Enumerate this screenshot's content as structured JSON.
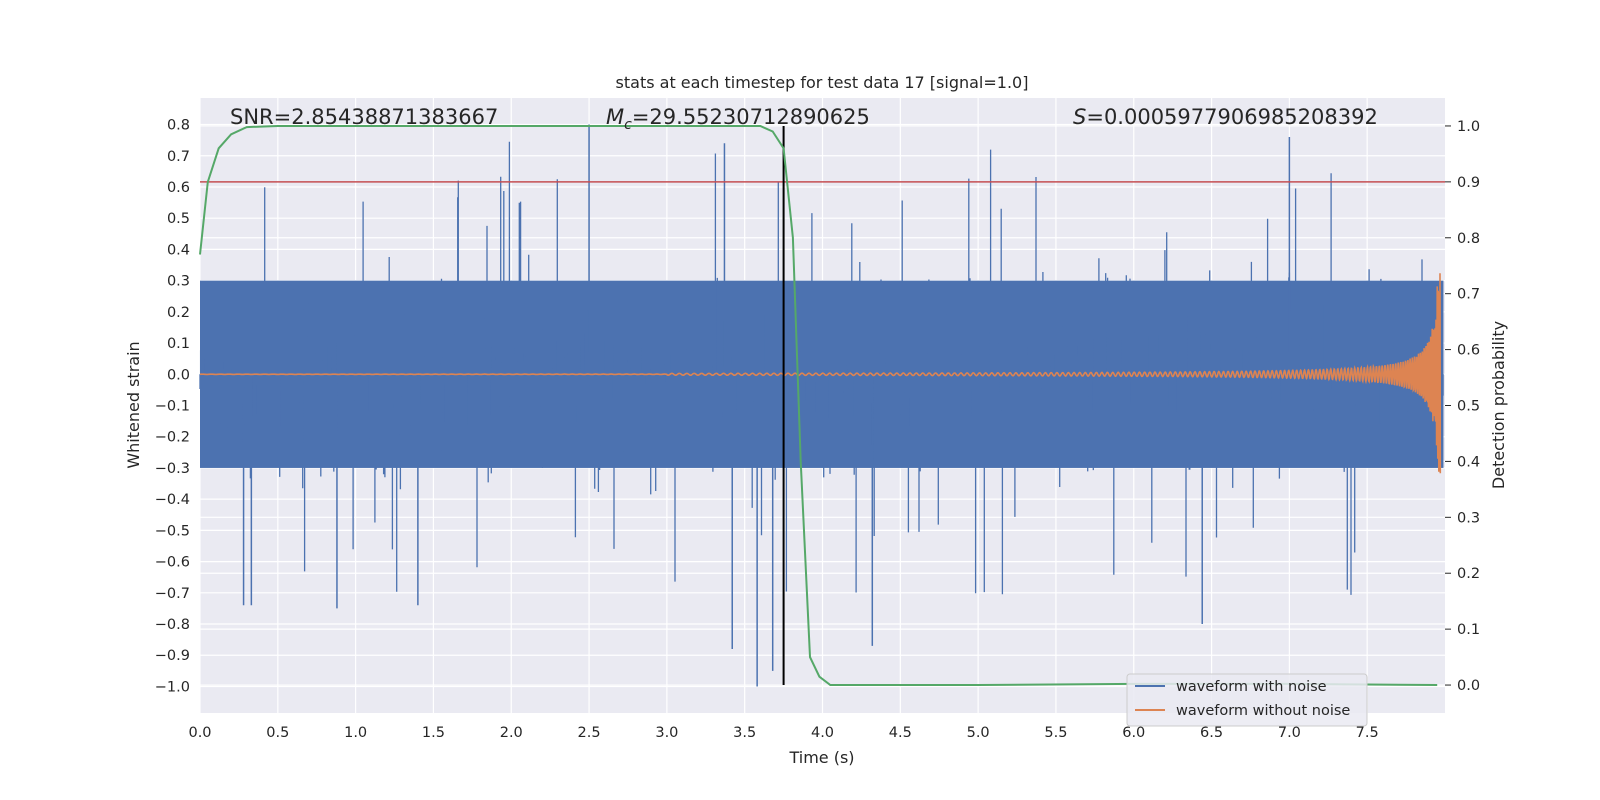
{
  "chart_data": {
    "type": "line",
    "title": "stats at each timestep for test data 17 [signal=1.0]",
    "xlabel": "Time (s)",
    "ylabel": "Whitened strain",
    "y2label": "Detection probability",
    "xlim": [
      0.0,
      8.0
    ],
    "ylim": [
      -1.085,
      0.885
    ],
    "y2lim": [
      -0.05,
      1.05
    ],
    "xticks": [
      "0.0",
      "0.5",
      "1.0",
      "1.5",
      "2.0",
      "2.5",
      "3.0",
      "3.5",
      "4.0",
      "4.5",
      "5.0",
      "5.5",
      "6.0",
      "6.5",
      "7.0",
      "7.5"
    ],
    "yticks": [
      "0.8",
      "0.7",
      "0.6",
      "0.5",
      "0.4",
      "0.3",
      "0.2",
      "0.1",
      "0.0",
      "−0.1",
      "−0.2",
      "−0.3",
      "−0.4",
      "−0.5",
      "−0.6",
      "−0.7",
      "−0.8",
      "−0.9",
      "−1.0"
    ],
    "y2ticks": [
      "1.0",
      "0.9",
      "0.8",
      "0.7",
      "0.6",
      "0.5",
      "0.4",
      "0.3",
      "0.2",
      "0.1",
      "0.0"
    ],
    "annotations": {
      "snr": "SNR=2.85438871383667",
      "mc_symbol": "M",
      "mc_sub": "c",
      "mc_value": "=29.55230712890625",
      "s_symbol": "S",
      "s_value": "=0.0005977906985208392"
    },
    "threshold_probability": 0.9,
    "merger_time": 3.75,
    "legend": {
      "position": "lower-right",
      "entries": [
        "waveform with noise",
        "waveform without noise"
      ]
    },
    "series": [
      {
        "name": "waveform with noise",
        "color": "#4c72b0",
        "description": "whitened noisy strain, roughly +/-0.3 band with spikes",
        "band": [
          -0.3,
          0.3
        ],
        "peak_max": 0.8,
        "peak_min": -1.0
      },
      {
        "name": "waveform without noise",
        "color": "#dd8452",
        "description": "chirp waveform, amplitude growing until merger near 8.0 s",
        "peak_amplitude": 0.33
      },
      {
        "name": "detection probability",
        "color": "#55a868",
        "axis": "right",
        "x": [
          0.0,
          0.05,
          0.12,
          0.2,
          0.3,
          0.5,
          1.0,
          2.0,
          3.0,
          3.6,
          3.68,
          3.75,
          3.81,
          3.86,
          3.92,
          3.98,
          4.05,
          4.5,
          5.0,
          6.0,
          7.0,
          7.95
        ],
        "y": [
          0.77,
          0.9,
          0.96,
          0.985,
          0.998,
          1.0,
          1.0,
          1.0,
          1.0,
          1.0,
          0.99,
          0.96,
          0.8,
          0.4,
          0.05,
          0.015,
          0.0,
          0.0,
          0.0,
          0.002,
          0.002,
          0.0
        ]
      }
    ]
  }
}
